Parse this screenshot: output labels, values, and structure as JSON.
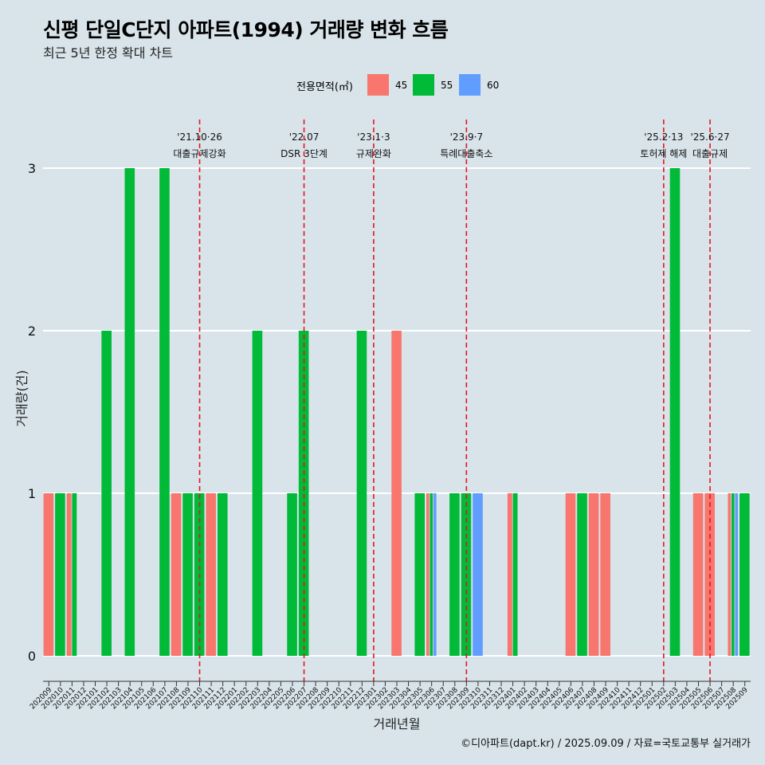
{
  "title": "신평 단일C단지 아파트(1994) 거래량 변화 흐름",
  "subtitle": "최근 5년 한정 확대 차트",
  "legend_title": "전용면적(㎡)",
  "caption": "©디아파트(dapt.kr) / 2025.09.09 / 자료=국토교통부 실거래가",
  "colors": {
    "45": "#f8766d",
    "55": "#00ba38",
    "60": "#619cff",
    "background": "#d8e4ea",
    "event_line": "#e8141e"
  },
  "chart_data": {
    "type": "bar",
    "xlabel": "거래년월",
    "ylabel": "거래량(건)",
    "ylim": [
      0,
      3
    ],
    "yticks": [
      0,
      1,
      2,
      3
    ],
    "grid": true,
    "legend_position": "top",
    "categories": [
      "202009",
      "202010",
      "202011",
      "202012",
      "202101",
      "202102",
      "202103",
      "202104",
      "202105",
      "202106",
      "202107",
      "202108",
      "202109",
      "202110",
      "202111",
      "202112",
      "202201",
      "202202",
      "202203",
      "202204",
      "202205",
      "202206",
      "202207",
      "202208",
      "202209",
      "202210",
      "202211",
      "202212",
      "202301",
      "202302",
      "202303",
      "202304",
      "202305",
      "202306",
      "202307",
      "202308",
      "202309",
      "202310",
      "202311",
      "202312",
      "202401",
      "202402",
      "202403",
      "202404",
      "202405",
      "202406",
      "202407",
      "202408",
      "202409",
      "202410",
      "202411",
      "202412",
      "202501",
      "202502",
      "202503",
      "202504",
      "202505",
      "202506",
      "202507",
      "202508",
      "202509"
    ],
    "series": [
      {
        "name": "45",
        "color": "#f8766d",
        "values": [
          1,
          0,
          1,
          0,
          0,
          0,
          0,
          0,
          0,
          0,
          0,
          1,
          0,
          0,
          1,
          0,
          0,
          0,
          0,
          0,
          0,
          0,
          0,
          0,
          0,
          0,
          0,
          0,
          0,
          0,
          2,
          0,
          0,
          1,
          0,
          0,
          0,
          0,
          0,
          0,
          1,
          0,
          0,
          0,
          0,
          1,
          0,
          1,
          1,
          0,
          0,
          0,
          0,
          0,
          0,
          0,
          1,
          1,
          0,
          1,
          0
        ]
      },
      {
        "name": "55",
        "color": "#00ba38",
        "values": [
          0,
          1,
          1,
          0,
          0,
          2,
          0,
          3,
          0,
          0,
          3,
          0,
          1,
          1,
          0,
          1,
          0,
          0,
          2,
          0,
          0,
          1,
          2,
          0,
          0,
          0,
          0,
          2,
          0,
          0,
          0,
          0,
          1,
          1,
          0,
          1,
          1,
          0,
          0,
          0,
          1,
          0,
          0,
          0,
          0,
          0,
          1,
          0,
          0,
          0,
          0,
          0,
          0,
          0,
          3,
          0,
          0,
          0,
          0,
          1,
          1
        ]
      },
      {
        "name": "60",
        "color": "#619cff",
        "values": [
          0,
          0,
          0,
          0,
          0,
          0,
          0,
          0,
          0,
          0,
          0,
          0,
          0,
          0,
          0,
          0,
          0,
          0,
          0,
          0,
          0,
          0,
          0,
          0,
          0,
          0,
          0,
          0,
          0,
          0,
          0,
          0,
          0,
          1,
          0,
          0,
          0,
          1,
          0,
          0,
          0,
          0,
          0,
          0,
          0,
          0,
          0,
          0,
          0,
          0,
          0,
          0,
          0,
          0,
          0,
          0,
          0,
          0,
          0,
          1,
          0
        ]
      }
    ],
    "events": [
      {
        "date_label": "'21.10·26",
        "text": "대출규제강화",
        "month": "202110"
      },
      {
        "date_label": "'22.07",
        "text": "DSR 3단계",
        "month": "202207"
      },
      {
        "date_label": "'23.1·3",
        "text": "규제완화",
        "month": "202301"
      },
      {
        "date_label": "'23.9·7",
        "text": "특례대출축소",
        "month": "202309"
      },
      {
        "date_label": "'25.2·13",
        "text": "토허제 해제",
        "month": "202502"
      },
      {
        "date_label": "'25.6·27",
        "text": "대출규제",
        "month": "202506"
      }
    ]
  }
}
